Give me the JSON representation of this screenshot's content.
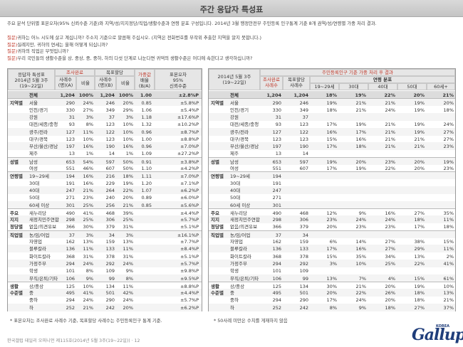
{
  "title": "주간 응답자 특성표",
  "intro": "주요 분석 단위별 표본오차(95% 신뢰수준 기준)와 지역/성/지지정당/직업/생활수준과 연령 분포 구성입니다. 2014년 3월 행정안전부 주민등록 인구통계 기준 8개 권역/성/연령별 가중 처리 결과.",
  "questions": [
    {
      "label": "질문)",
      "text": "귀하는 어느 시도에 살고 계십니까? 주소지 기준으로 말씀해 주십시오. (지역은 전화번호를 무작위 추출한 지역을 알지 못합니다.)"
    },
    {
      "label": "질문)",
      "text": "실례지만, 귀하의 연세는 올해 어떻게 되십니까?"
    },
    {
      "label": "질문)",
      "text": "귀하의 직업은 무엇입니까?"
    },
    {
      "label": "질문)",
      "text": "우리 국민들의 생활수준을 상, 중상, 중, 중하, 하의 다섯 단계로 나눈다면 귀댁의 생활수준은 어디에 속한다고 생각하십니까?"
    }
  ],
  "left": {
    "h_main": "응답자 특성표",
    "h_date": "2014년 5월 3주",
    "h_date2": "(19~22일)",
    "h_survey": "조사완료",
    "h_target": "목표할당",
    "h_weight": "가중값",
    "h_weight2": "배율",
    "h_weight3": "(B/A)",
    "h_err": "표본오차",
    "h_err2": "95%",
    "h_err3": "신뢰수준",
    "h_cases": "사례수",
    "h_cases2": "(명)(A)",
    "h_cases3": "(명)(B)",
    "h_ratio": "비율"
  },
  "right": {
    "h_title": "주민등록인구 기준 가중 처리 후 결과",
    "h_date": "2014년 5월 3주",
    "h_date2": "(19~22일)",
    "h_survey": "조사완료",
    "h_cases": "사례수",
    "h_target": "목표할당",
    "h_target2": "사례수",
    "h_age": "연령 분포",
    "age_cols": [
      "19~29세",
      "30대",
      "40대",
      "50대",
      "60세+"
    ]
  },
  "rows": [
    {
      "g": "",
      "l": "전체",
      "a": "1,204",
      "ar": "100%",
      "b": "1,204",
      "br": "100%",
      "w": "1.00",
      "e": "±2.8%P",
      "r": [
        "1,204",
        "18%",
        "19%",
        "22%",
        "20%",
        "21%"
      ],
      "first": true
    },
    {
      "g": "지역별",
      "l": "서울",
      "a": "290",
      "ar": "24%",
      "b": "246",
      "br": "20%",
      "w": "0.85",
      "e": "±5.8%P",
      "r": [
        "246",
        "19%",
        "21%",
        "21%",
        "19%",
        "20%"
      ],
      "sep": true
    },
    {
      "g": "",
      "l": "인천/경기",
      "a": "330",
      "ar": "27%",
      "b": "349",
      "br": "29%",
      "w": "1.06",
      "e": "±5.4%P",
      "r": [
        "349",
        "18%",
        "21%",
        "24%",
        "19%",
        "18%"
      ]
    },
    {
      "g": "",
      "l": "강원",
      "a": "31",
      "ar": "3%",
      "b": "37",
      "br": "3%",
      "w": "1.18",
      "e": "±17.6%P",
      "r": [
        "37",
        "",
        "",
        "",
        "",
        ""
      ]
    },
    {
      "g": "",
      "l": "대전/세종/충청",
      "a": "93",
      "ar": "8%",
      "b": "123",
      "br": "10%",
      "w": "1.32",
      "e": "±10.2%P",
      "r": [
        "123",
        "17%",
        "19%",
        "21%",
        "19%",
        "24%"
      ]
    },
    {
      "g": "",
      "l": "광주/전라",
      "a": "127",
      "ar": "11%",
      "b": "122",
      "br": "10%",
      "w": "0.96",
      "e": "±8.7%P",
      "r": [
        "122",
        "16%",
        "17%",
        "21%",
        "19%",
        "27%"
      ]
    },
    {
      "g": "",
      "l": "대구/경북",
      "a": "123",
      "ar": "10%",
      "b": "123",
      "br": "10%",
      "w": "1.00",
      "e": "±8.8%P",
      "r": [
        "123",
        "15%",
        "16%",
        "21%",
        "21%",
        "27%"
      ]
    },
    {
      "g": "",
      "l": "부산/울산/경남",
      "a": "197",
      "ar": "16%",
      "b": "190",
      "br": "16%",
      "w": "0.96",
      "e": "±7.0%P",
      "r": [
        "190",
        "17%",
        "18%",
        "21%",
        "21%",
        "23%"
      ]
    },
    {
      "g": "",
      "l": "제주",
      "a": "13",
      "ar": "1%",
      "b": "14",
      "br": "1%",
      "w": "1.09",
      "e": "±27.2%P",
      "r": [
        "14",
        "",
        "",
        "",
        "",
        ""
      ]
    },
    {
      "g": "성별",
      "l": "남성",
      "a": "653",
      "ar": "54%",
      "b": "597",
      "br": "50%",
      "w": "0.91",
      "e": "±3.8%P",
      "r": [
        "597",
        "19%",
        "20%",
        "23%",
        "20%",
        "19%"
      ],
      "sep": true
    },
    {
      "g": "",
      "l": "여성",
      "a": "551",
      "ar": "46%",
      "b": "607",
      "br": "50%",
      "w": "1.10",
      "e": "±4.2%P",
      "r": [
        "607",
        "17%",
        "19%",
        "22%",
        "20%",
        "23%"
      ]
    },
    {
      "g": "연령별",
      "l": "19~29세",
      "a": "194",
      "ar": "16%",
      "b": "216",
      "br": "18%",
      "w": "1.11",
      "e": "±7.0%P",
      "r": [
        "",
        "",
        "",
        "",
        "",
        ""
      ],
      "sep": true
    },
    {
      "g": "",
      "l": "30대",
      "a": "191",
      "ar": "16%",
      "b": "229",
      "br": "19%",
      "w": "1.20",
      "e": "±7.1%P",
      "r": [
        "",
        "",
        "",
        "",
        "",
        ""
      ]
    },
    {
      "g": "",
      "l": "40대",
      "a": "247",
      "ar": "21%",
      "b": "264",
      "br": "22%",
      "w": "1.07",
      "e": "±6.2%P",
      "r": [
        "",
        "",
        "",
        "",
        "",
        ""
      ]
    },
    {
      "g": "",
      "l": "50대",
      "a": "271",
      "ar": "23%",
      "b": "240",
      "br": "20%",
      "w": "0.89",
      "e": "±6.0%P",
      "r": [
        "",
        "",
        "",
        "",
        "",
        ""
      ]
    },
    {
      "g": "",
      "l": "60세 이상",
      "a": "301",
      "ar": "25%",
      "b": "256",
      "br": "21%",
      "w": "0.85",
      "e": "±5.6%P",
      "r": [
        "",
        "",
        "",
        "",
        "",
        ""
      ]
    },
    {
      "g": "주요",
      "l": "새누리당",
      "a": "490",
      "ar": "41%",
      "b": "468",
      "br": "39%",
      "w": "",
      "e": "±4.4%P",
      "r": [
        "468",
        "12%",
        "9%",
        "16%",
        "27%",
        "35%"
      ],
      "sep": true
    },
    {
      "g": "지지",
      "l": "새정치민주연합",
      "a": "298",
      "ar": "25%",
      "b": "306",
      "br": "25%",
      "w": "",
      "e": "±5.7%P",
      "r": [
        "306",
        "23%",
        "24%",
        "24%",
        "18%",
        "11%"
      ]
    },
    {
      "g": "정당별",
      "l": "없음/의견유보",
      "a": "366",
      "ar": "30%",
      "b": "379",
      "br": "31%",
      "w": "",
      "e": "±5.1%P",
      "r": [
        "379",
        "20%",
        "23%",
        "23%",
        "17%",
        "18%"
      ]
    },
    {
      "g": "직업별",
      "l": "농/임/어업",
      "a": "37",
      "ar": "3%",
      "b": "34",
      "br": "3%",
      "w": "",
      "e": "±16.1%P",
      "r": [
        "34",
        "",
        "",
        "",
        "",
        ""
      ],
      "sep": true
    },
    {
      "g": "",
      "l": "자영업",
      "a": "162",
      "ar": "13%",
      "b": "159",
      "br": "13%",
      "w": "",
      "e": "±7.7%P",
      "r": [
        "159",
        "6%",
        "14%",
        "27%",
        "38%",
        "15%"
      ]
    },
    {
      "g": "",
      "l": "블루칼라",
      "a": "136",
      "ar": "11%",
      "b": "133",
      "br": "11%",
      "w": "",
      "e": "±8.4%P",
      "r": [
        "133",
        "17%",
        "16%",
        "27%",
        "29%",
        "11%"
      ]
    },
    {
      "g": "",
      "l": "화이트칼라",
      "a": "368",
      "ar": "31%",
      "b": "378",
      "br": "31%",
      "w": "",
      "e": "±5.1%P",
      "r": [
        "378",
        "15%",
        "35%",
        "34%",
        "13%",
        "2%"
      ]
    },
    {
      "g": "",
      "l": "가정주부",
      "a": "294",
      "ar": "24%",
      "b": "292",
      "br": "24%",
      "w": "",
      "e": "±5.7%P",
      "r": [
        "292",
        "3%",
        "10%",
        "25%",
        "22%",
        "41%"
      ]
    },
    {
      "g": "",
      "l": "학생",
      "a": "101",
      "ar": "8%",
      "b": "109",
      "br": "9%",
      "w": "",
      "e": "±9.8%P",
      "r": [
        "109",
        "",
        "",
        "",
        "",
        ""
      ]
    },
    {
      "g": "",
      "l": "무직/은퇴/기타",
      "a": "106",
      "ar": "9%",
      "b": "99",
      "br": "8%",
      "w": "",
      "e": "±9.5%P",
      "r": [
        "99",
        "13%",
        "7%",
        "4%",
        "15%",
        "61%"
      ]
    },
    {
      "g": "생활",
      "l": "상/중상",
      "a": "125",
      "ar": "10%",
      "b": "134",
      "br": "11%",
      "w": "",
      "e": "±8.8%P",
      "r": [
        "134",
        "30%",
        "21%",
        "20%",
        "19%",
        "10%"
      ],
      "sep": true
    },
    {
      "g": "수준별",
      "l": "중",
      "a": "495",
      "ar": "41%",
      "b": "501",
      "br": "42%",
      "w": "",
      "e": "±4.4%P",
      "r": [
        "501",
        "20%",
        "22%",
        "26%",
        "18%",
        "13%"
      ]
    },
    {
      "g": "",
      "l": "중하",
      "a": "294",
      "ar": "24%",
      "b": "290",
      "br": "24%",
      "w": "",
      "e": "±5.7%P",
      "r": [
        "290",
        "17%",
        "24%",
        "20%",
        "18%",
        "21%"
      ]
    },
    {
      "g": "",
      "l": "하",
      "a": "252",
      "ar": "21%",
      "b": "242",
      "br": "20%",
      "w": "",
      "e": "±6.2%P",
      "r": [
        "242",
        "8%",
        "9%",
        "18%",
        "27%",
        "37%"
      ]
    }
  ],
  "foot_left": "* 표본오차는 조사완료 사례수 기준, 목표할당 사례수는 주민등록인구 통계 기준.",
  "foot_right": "* 50사례 미만은 수치를 게재하지 않음",
  "credit": "한국갤럽 데일리 오피니언 제115호(2014년 5월 3주(19~22일)) · 12",
  "logo": {
    "word": "Gallup",
    "sub": "KOREA"
  }
}
